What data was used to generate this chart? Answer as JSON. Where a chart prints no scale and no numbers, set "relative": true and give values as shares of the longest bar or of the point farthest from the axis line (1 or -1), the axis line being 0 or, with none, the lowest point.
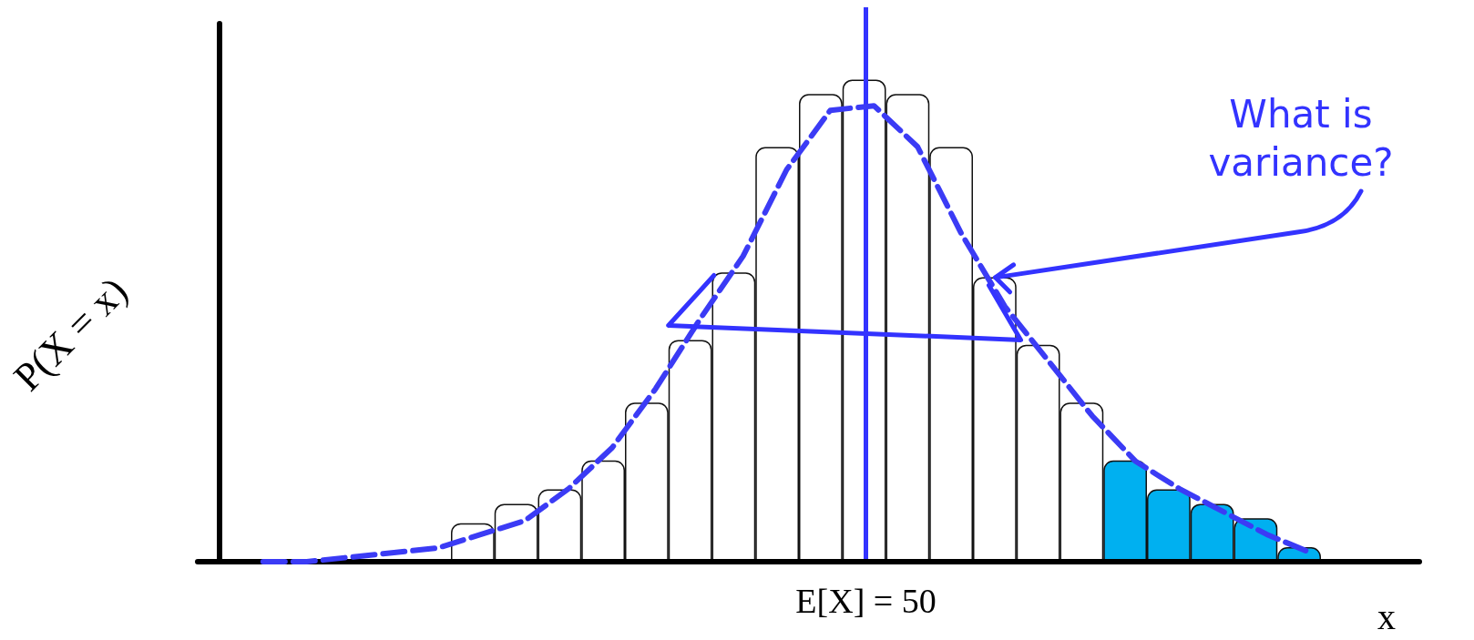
{
  "chart_data": [
    {
      "type": "bar",
      "relative": true,
      "xlabel": "x",
      "ylabel": "P(X = x)",
      "annotations": [
        "What is variance?"
      ],
      "categories": [
        null,
        null,
        null,
        null,
        null,
        null,
        null,
        null,
        null,
        null,
        null,
        null,
        null,
        null,
        null,
        null,
        null,
        null,
        null,
        null
      ],
      "grid": false,
      "series": [
        {
          "values": [
            0.08,
            0.12,
            0.15,
            0.21,
            0.33,
            0.46,
            0.6,
            0.86,
            0.97,
            1,
            0.97,
            0.86,
            0.59,
            0.45,
            0.33,
            0.21,
            0.15,
            0.12,
            0.09,
            0.03
          ],
          "colors": [
            "#ffffff",
            "#ffffff",
            "#ffffff",
            "#ffffff",
            "#ffffff",
            "#ffffff",
            "#ffffff",
            "#ffffff",
            "#ffffff",
            "#ffffff",
            "#ffffff",
            "#ffffff",
            "#ffffff",
            "#ffffff",
            "#ffffff",
            "#00b0f0",
            "#00b0f0",
            "#00b0f0",
            "#00b0f0",
            "#00b0f0"
          ]
        }
      ],
      "ref_lines": [
        {
          "axis": "x",
          "label": "E[X] = 50",
          "color": "#3333ff",
          "line_style": "solid"
        }
      ]
    },
    {
      "type": "line",
      "relative": true,
      "grid": false,
      "categories": [
        null,
        null,
        null,
        null,
        null,
        null,
        null,
        null,
        null,
        null,
        null,
        null,
        null,
        null,
        null,
        null,
        null,
        null,
        null,
        null,
        null,
        null,
        null,
        null,
        null,
        null,
        null,
        null
      ],
      "series": [
        {
          "color": "#3b3bf5",
          "line_style": "dashed",
          "marker": "none",
          "values": [
            null,
            0,
            0,
            0.01,
            0.02,
            0.03,
            0.06,
            0.09,
            0.16,
            0.25,
            0.38,
            0.53,
            0.67,
            0.86,
            0.99,
            1,
            0.91,
            0.72,
            0.56,
            0.44,
            0.32,
            0.22,
            0.16,
            0.11,
            0.06,
            0.02,
            null,
            null
          ]
        }
      ]
    }
  ]
}
